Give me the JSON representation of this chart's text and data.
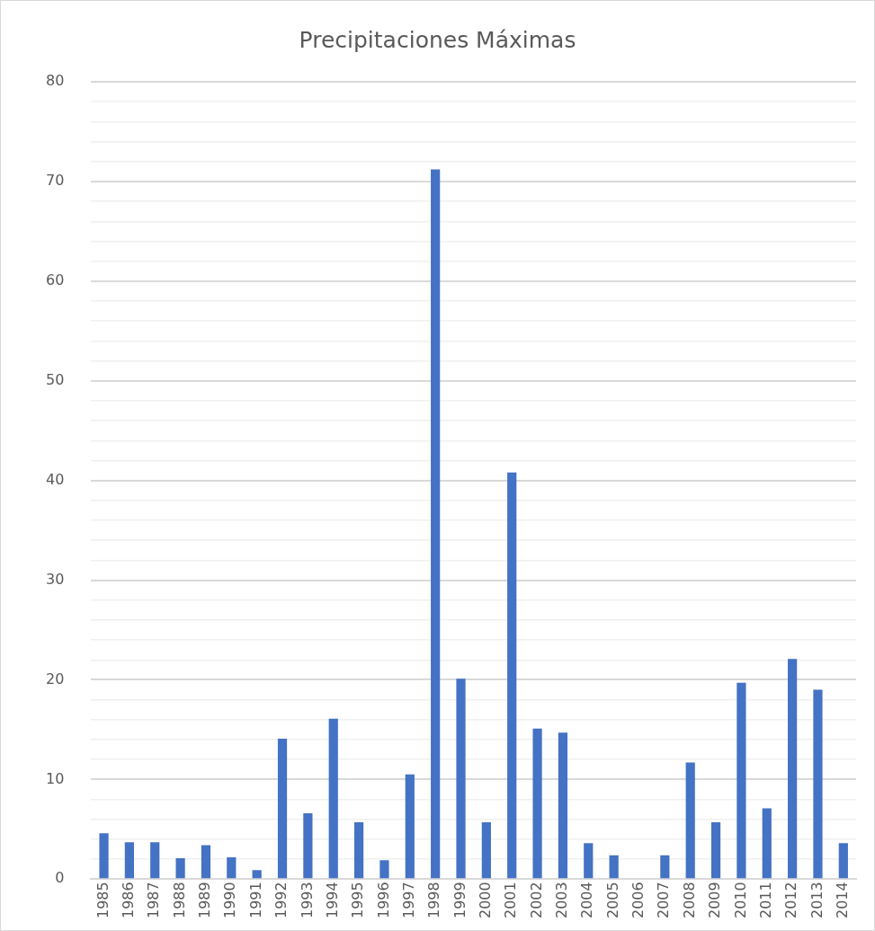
{
  "chart_data": {
    "type": "bar",
    "title": "Precipitaciones Máximas",
    "categories": [
      "1985",
      "1986",
      "1987",
      "1988",
      "1989",
      "1990",
      "1991",
      "1992",
      "1993",
      "1994",
      "1995",
      "1996",
      "1997",
      "1998",
      "1999",
      "2000",
      "2001",
      "2002",
      "2003",
      "2004",
      "2005",
      "2006",
      "2007",
      "2008",
      "2009",
      "2010",
      "2011",
      "2012",
      "2013",
      "2014"
    ],
    "values": [
      4.6,
      3.7,
      3.7,
      2.1,
      3.4,
      2.2,
      0.9,
      14.1,
      6.6,
      16.1,
      5.7,
      1.9,
      10.5,
      71.2,
      20.1,
      5.7,
      40.8,
      15.1,
      14.7,
      3.6,
      2.4,
      0,
      2.4,
      11.7,
      5.7,
      19.7,
      7.1,
      22.1,
      19.0,
      3.6
    ],
    "color": "#4472c4",
    "ylim": [
      0,
      80
    ],
    "yticks": [
      0,
      {
        "value": 2,
        "label": null
      },
      {
        "value": 4,
        "label": null
      },
      {
        "value": 6,
        "label": null
      },
      {
        "value": 8,
        "label": null
      },
      10,
      {
        "value": 12,
        "label": null
      },
      {
        "value": 14,
        "label": null
      },
      {
        "value": 16,
        "label": null
      },
      {
        "value": 18,
        "label": null
      },
      20,
      {
        "value": 22,
        "label": null
      },
      {
        "value": 24,
        "label": null
      },
      {
        "value": 26,
        "label": null
      },
      {
        "value": 28,
        "label": null
      },
      30,
      {
        "value": 32,
        "label": null
      },
      {
        "value": 34,
        "label": null
      },
      {
        "value": 36,
        "label": null
      },
      {
        "value": 38,
        "label": null
      },
      40,
      {
        "value": 42,
        "label": null
      },
      {
        "value": 44,
        "label": null
      },
      {
        "value": 46,
        "label": null
      },
      {
        "value": 48,
        "label": null
      },
      50,
      {
        "value": 52,
        "label": null
      },
      {
        "value": 54,
        "label": null
      },
      {
        "value": 56,
        "label": null
      },
      {
        "value": 58,
        "label": null
      },
      60,
      {
        "value": 62,
        "label": null
      },
      {
        "value": 64,
        "label": null
      },
      {
        "value": 66,
        "label": null
      },
      {
        "value": 68,
        "label": null
      },
      70,
      {
        "value": 72,
        "label": null
      },
      {
        "value": 74,
        "label": null
      },
      {
        "value": 76,
        "label": null
      },
      {
        "value": 78,
        "label": null
      },
      80
    ],
    "grid": "y",
    "legend": false
  }
}
